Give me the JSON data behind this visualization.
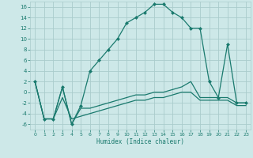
{
  "xlabel": "Humidex (Indice chaleur)",
  "x": [
    0,
    1,
    2,
    3,
    4,
    5,
    6,
    7,
    8,
    9,
    10,
    11,
    12,
    13,
    14,
    15,
    16,
    17,
    18,
    19,
    20,
    21,
    22,
    23
  ],
  "line1": [
    2,
    -5,
    -5,
    1,
    -6,
    -2.5,
    4,
    6,
    8,
    10,
    13,
    14,
    15,
    16.5,
    16.5,
    15,
    14,
    12,
    12,
    2,
    -1,
    9,
    -2,
    -2
  ],
  "line2": [
    2,
    -5,
    -5,
    1,
    -6,
    -3,
    -3,
    -2.5,
    -2,
    -1.5,
    -1,
    -0.5,
    -0.5,
    0,
    0,
    0.5,
    1,
    2,
    -1,
    -1,
    -1,
    -1,
    -2,
    -2
  ],
  "line3": [
    2,
    -5,
    -5,
    -1,
    -5,
    -4.5,
    -4,
    -3.5,
    -3,
    -2.5,
    -2,
    -1.5,
    -1.5,
    -1,
    -1,
    -0.5,
    0,
    0,
    -1.5,
    -1.5,
    -1.5,
    -1.5,
    -2.5,
    -2.5
  ],
  "color": "#1a7a6e",
  "bg_color": "#cde8e8",
  "grid_color": "#aacccc",
  "ylim": [
    -7,
    17
  ],
  "xlim": [
    -0.5,
    23.5
  ],
  "yticks": [
    -6,
    -4,
    -2,
    0,
    2,
    4,
    6,
    8,
    10,
    12,
    14,
    16
  ],
  "xticks": [
    0,
    1,
    2,
    3,
    4,
    5,
    6,
    7,
    8,
    9,
    10,
    11,
    12,
    13,
    14,
    15,
    16,
    17,
    18,
    19,
    20,
    21,
    22,
    23
  ],
  "marker_size": 2.5,
  "line_width": 0.9
}
